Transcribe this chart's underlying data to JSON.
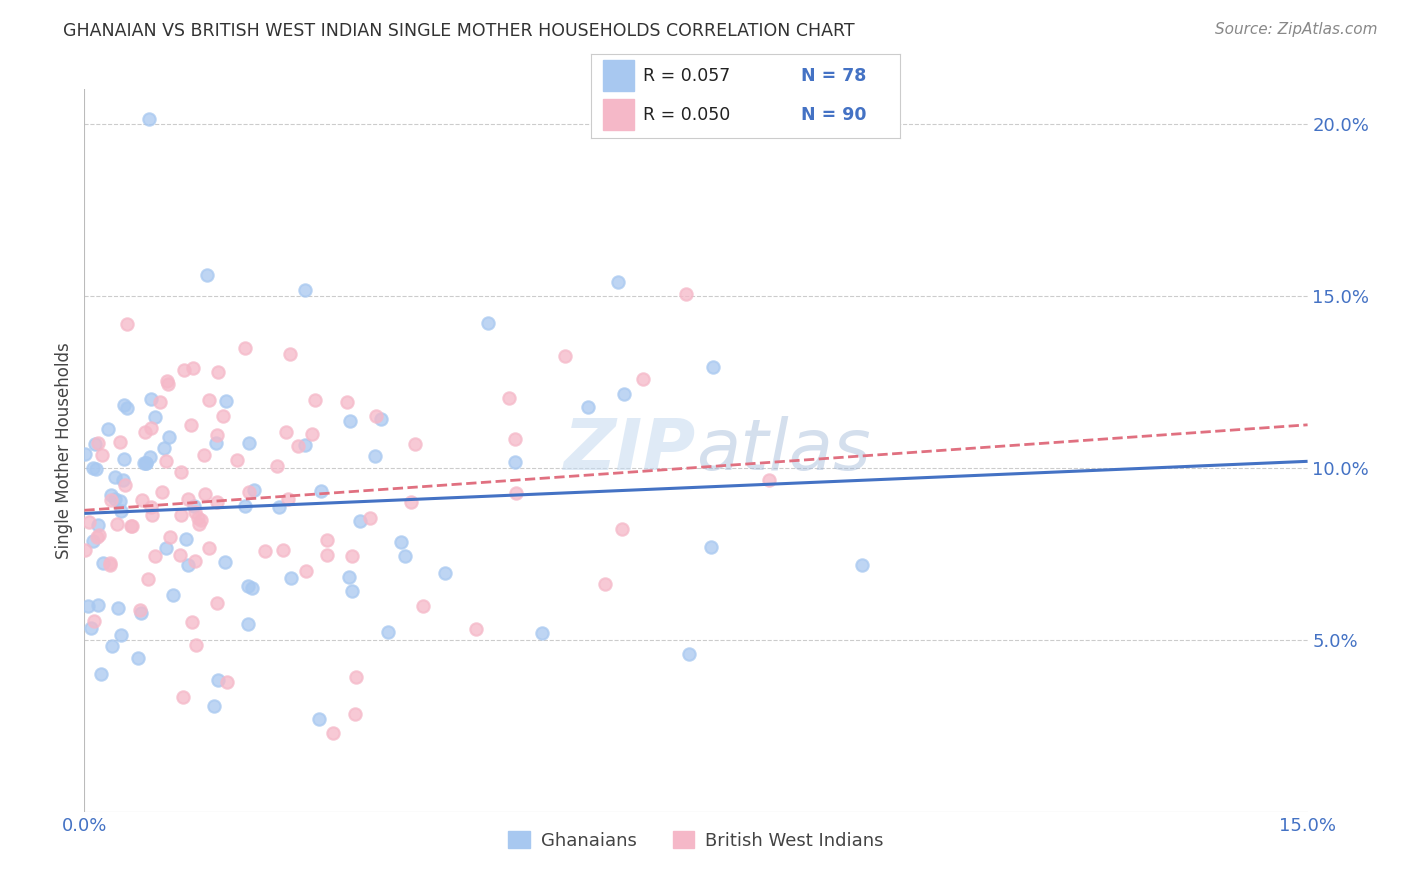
{
  "title": "GHANAIAN VS BRITISH WEST INDIAN SINGLE MOTHER HOUSEHOLDS CORRELATION CHART",
  "source": "Source: ZipAtlas.com",
  "ylabel": "Single Mother Households",
  "xlim": [
    0.0,
    0.15
  ],
  "ylim": [
    0.0,
    0.21
  ],
  "background_color": "#ffffff",
  "grid_color": "#cccccc",
  "ghanaian_color": "#a8c8f0",
  "bwi_color": "#f5b8c8",
  "ghanaian_line_color": "#4472c4",
  "bwi_line_color": "#e07080",
  "legend_R_ghanaian": "R = 0.057",
  "legend_N_ghanaian": "N = 78",
  "legend_R_bwi": "R = 0.050",
  "legend_N_bwi": "N = 90",
  "tick_color": "#4472c4",
  "title_color": "#333333",
  "source_color": "#888888",
  "watermark": "ZIPatlas",
  "marker_size": 80,
  "marker_alpha": 0.75
}
